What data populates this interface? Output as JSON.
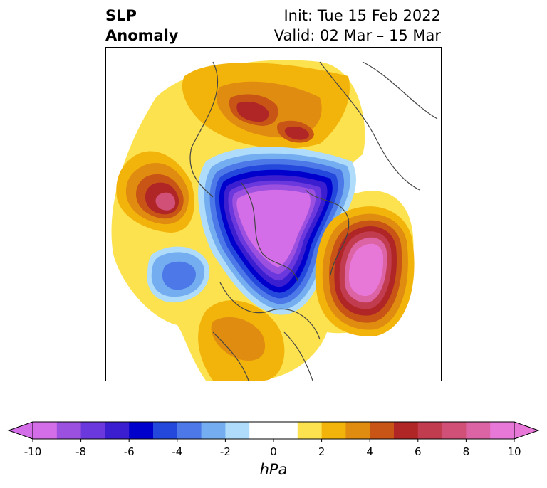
{
  "header": {
    "title_line1": "SLP",
    "title_line2": "Anomaly",
    "init_text": "Init: Tue 15 Feb 2022",
    "valid_text": "Valid: 02 Mar – 15 Mar"
  },
  "map": {
    "projection": "north-polar-stereographic",
    "features": [
      {
        "name": "negative-anomaly-polar",
        "sign": "negative",
        "peak_hpa": -10
      },
      {
        "name": "positive-anomaly-north-pacific",
        "sign": "positive",
        "peak_hpa": 10
      },
      {
        "name": "positive-anomaly-ural-siberia",
        "sign": "positive",
        "peak_hpa": 7
      },
      {
        "name": "positive-anomaly-west-siberia",
        "sign": "positive",
        "peak_hpa": 7
      },
      {
        "name": "positive-anomaly-north-atlantic",
        "sign": "positive",
        "peak_hpa": 8
      },
      {
        "name": "negative-anomaly-mid-atlantic",
        "sign": "negative",
        "peak_hpa": -5
      },
      {
        "name": "positive-anomaly-north-america",
        "sign": "positive",
        "peak_hpa": 4
      }
    ]
  },
  "colorbar": {
    "label": "hPa",
    "ticks": [
      "-10",
      "-8",
      "-6",
      "-4",
      "-2",
      "0",
      "2",
      "4",
      "6",
      "8",
      "10"
    ],
    "tick_values": [
      -10,
      -8,
      -6,
      -4,
      -2,
      0,
      2,
      4,
      6,
      8,
      10
    ],
    "extend": "both",
    "colors": [
      "#d46ee8",
      "#9c50e0",
      "#6a38dc",
      "#3a1ed0",
      "#0000cc",
      "#2448dc",
      "#4c78e8",
      "#74aef0",
      "#aedcfa",
      "#ffffff",
      "#ffffff",
      "#fde250",
      "#f2b40a",
      "#e08c10",
      "#c85416",
      "#b02626",
      "#c23c50",
      "#d05078",
      "#dc64a4",
      "#e878d8"
    ]
  }
}
